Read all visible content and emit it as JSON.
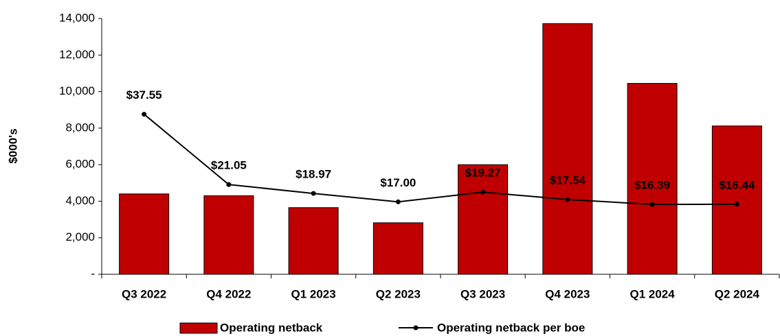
{
  "chart_data": {
    "type": "bar_line",
    "ylabel": "$000's",
    "categories": [
      "Q3 2022",
      "Q4 2022",
      "Q1 2023",
      "Q2 2023",
      "Q3 2023",
      "Q4 2023",
      "Q1 2024",
      "Q2 2024"
    ],
    "series": [
      {
        "name": "Operating netback",
        "type": "bar",
        "color": "#c00000",
        "values": [
          4400,
          4300,
          3650,
          2820,
          6000,
          13720,
          10450,
          8120
        ]
      },
      {
        "name": "Operating netback per boe",
        "type": "line",
        "axis": "y2",
        "color": "#000000",
        "values": [
          37.55,
          21.05,
          18.97,
          17.0,
          19.27,
          17.54,
          16.39,
          16.44
        ],
        "value_labels": [
          "$37.55",
          "$21.05",
          "$18.97",
          "$17.00",
          "$19.27",
          "$17.54",
          "$16.39",
          "$16.44"
        ]
      }
    ],
    "ylim": [
      0,
      14000
    ],
    "yticks": [
      {
        "value": 0,
        "label": "-"
      },
      {
        "value": 2000,
        "label": "2,000"
      },
      {
        "value": 4000,
        "label": "4,000"
      },
      {
        "value": 6000,
        "label": "6,000"
      },
      {
        "value": 8000,
        "label": "8,000"
      },
      {
        "value": 10000,
        "label": "10,000"
      },
      {
        "value": 12000,
        "label": "12,000"
      },
      {
        "value": 14000,
        "label": "14,000"
      }
    ],
    "y2lim": [
      0,
      60
    ],
    "grid": false,
    "legend": "bottom"
  }
}
